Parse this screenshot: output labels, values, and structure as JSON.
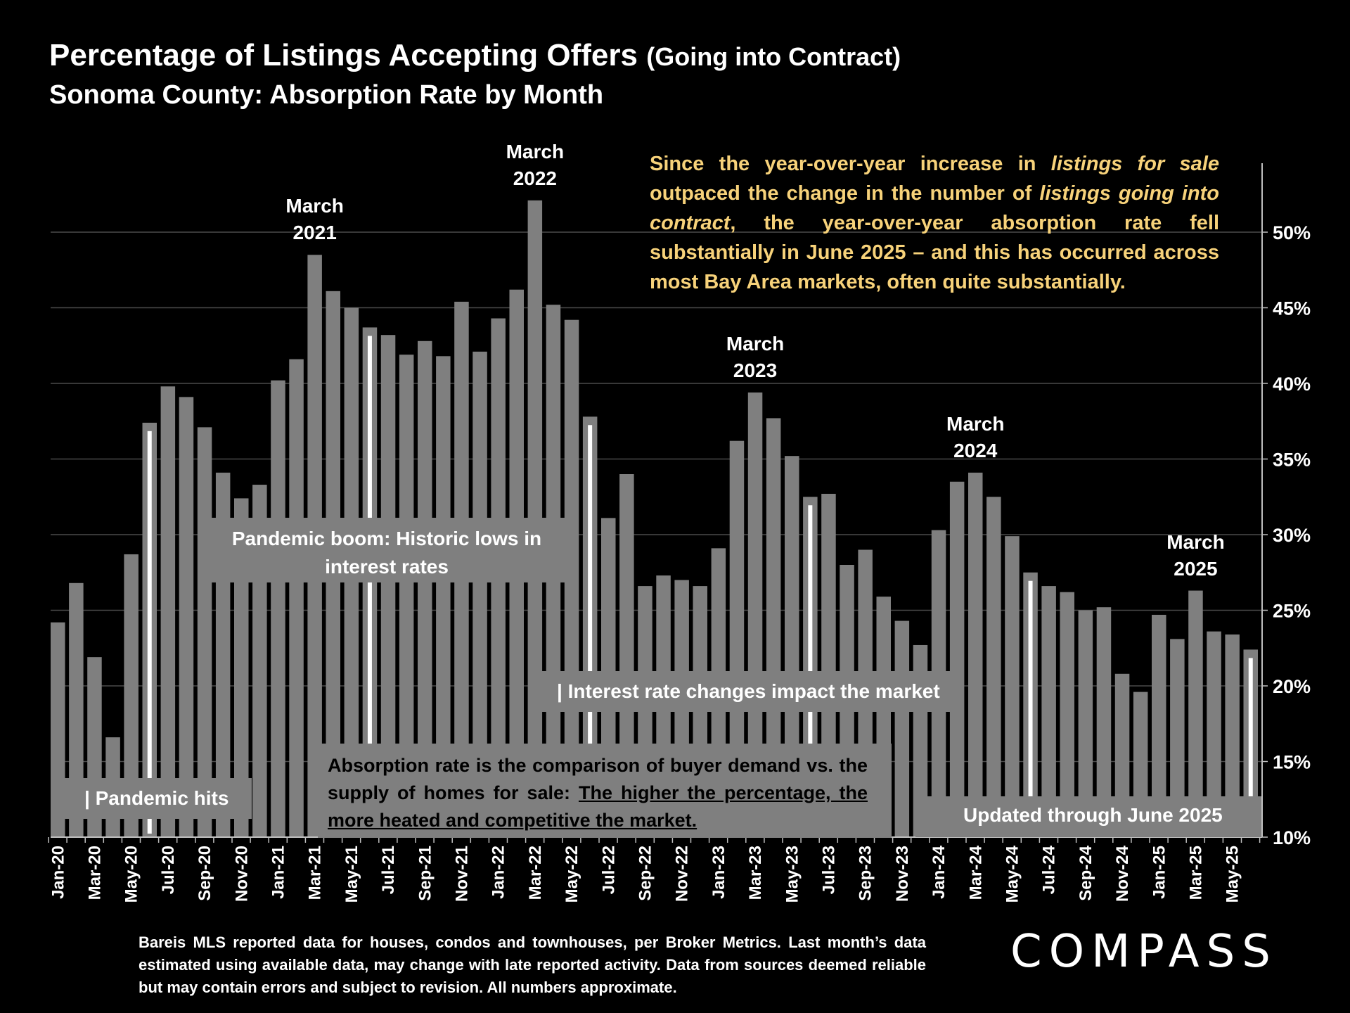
{
  "header": {
    "title_main": "Percentage of Listings Accepting Offers",
    "title_suffix": "(Going into Contract)",
    "subtitle": "Sonoma County:  Absorption Rate by Month"
  },
  "insight": {
    "p1": "Since the year-over-year increase in ",
    "p2": "listings for sale",
    "p3": " outpaced the change in the number of ",
    "p4": "listings going into contract",
    "p5": ", the year-over-year absorption rate fell substantially in June 2025 – and this has occurred across most Bay Area markets, often quite substantially."
  },
  "annotations": {
    "pandemic_boom": "Pandemic boom: Historic lows in interest rates",
    "pandemic_hits": "| Pandemic hits",
    "interest_rate": "| Interest rate changes impact the market",
    "definition_plain": "Absorption rate is the comparison of buyer demand vs. the supply of homes for sale: ",
    "definition_underlined": "The higher the percentage, the more heated and competitive the market.",
    "updated": "Updated through June 2025"
  },
  "peaks": [
    {
      "text": "March 2021",
      "index": 14
    },
    {
      "text": "March 2022",
      "index": 26
    },
    {
      "text": "March 2023",
      "index": 38
    },
    {
      "text": "March 2024",
      "index": 50
    },
    {
      "text": "March 2025",
      "index": 62
    }
  ],
  "footnote": "Bareis MLS reported data for houses, condos and townhouses, per Broker Metrics. Last month’s data estimated using available data, may change with late reported activity. Data from sources deemed reliable but may contain errors and subject to revision. All numbers approximate.",
  "logo": "COMPASS",
  "chart_data": {
    "type": "bar",
    "title": "Percentage of Listings Accepting Offers (Going into Contract)",
    "subtitle": "Sonoma County:  Absorption Rate by Month",
    "x": [
      "Jan-20",
      "Feb-20",
      "Mar-20",
      "Apr-20",
      "May-20",
      "Jun-20",
      "Jul-20",
      "Aug-20",
      "Sep-20",
      "Oct-20",
      "Nov-20",
      "Dec-20",
      "Jan-21",
      "Feb-21",
      "Mar-21",
      "Apr-21",
      "May-21",
      "Jun-21",
      "Jul-21",
      "Aug-21",
      "Sep-21",
      "Oct-21",
      "Nov-21",
      "Dec-21",
      "Jan-22",
      "Feb-22",
      "Mar-22",
      "Apr-22",
      "May-22",
      "Jun-22",
      "Jul-22",
      "Aug-22",
      "Sep-22",
      "Oct-22",
      "Nov-22",
      "Dec-22",
      "Jan-23",
      "Feb-23",
      "Mar-23",
      "Apr-23",
      "May-23",
      "Jun-23",
      "Jul-23",
      "Aug-23",
      "Sep-23",
      "Oct-23",
      "Nov-23",
      "Dec-23",
      "Jan-24",
      "Feb-24",
      "Mar-24",
      "Apr-24",
      "May-24",
      "Jun-24",
      "Jul-24",
      "Aug-24",
      "Sep-24",
      "Oct-24",
      "Nov-24",
      "Dec-24",
      "Jan-25",
      "Feb-25",
      "Mar-25",
      "Apr-25",
      "May-25",
      "Jun-25"
    ],
    "tick_labels": [
      "Jan-20",
      "Mar-20",
      "May-20",
      "Jul-20",
      "Sep-20",
      "Nov-20",
      "Jan-21",
      "Mar-21",
      "May-21",
      "Jul-21",
      "Sep-21",
      "Nov-21",
      "Jan-22",
      "Mar-22",
      "May-22",
      "Jul-22",
      "Sep-22",
      "Nov-22",
      "Jan-23",
      "Mar-23",
      "May-23",
      "Jul-23",
      "Sep-23",
      "Nov-23",
      "Jan-24",
      "Mar-24",
      "May-24",
      "Jul-24",
      "Sep-24",
      "Nov-24",
      "Jan-25",
      "Mar-25",
      "May-25"
    ],
    "values": [
      24.2,
      26.8,
      21.9,
      16.6,
      28.7,
      37.4,
      39.8,
      39.1,
      37.1,
      34.1,
      32.4,
      33.3,
      40.2,
      41.6,
      48.5,
      46.1,
      45.0,
      43.7,
      43.2,
      41.9,
      42.8,
      41.8,
      45.4,
      42.1,
      44.3,
      46.2,
      52.1,
      45.2,
      44.2,
      37.8,
      31.1,
      34.0,
      26.6,
      27.3,
      27.0,
      26.6,
      29.1,
      36.2,
      39.4,
      37.7,
      35.2,
      32.5,
      32.7,
      28.0,
      29.0,
      25.9,
      24.3,
      22.7,
      30.3,
      33.5,
      34.1,
      32.5,
      29.9,
      27.5,
      26.6,
      26.2,
      25.0,
      25.2,
      20.8,
      19.6,
      24.7,
      23.1,
      26.3,
      23.6,
      23.4,
      22.4
    ],
    "y_ticks": [
      "10%",
      "15%",
      "20%",
      "25%",
      "30%",
      "35%",
      "40%",
      "45%",
      "50%"
    ],
    "ylim": [
      10,
      54
    ],
    "y_axis_side": "right",
    "grid": true,
    "bar_color": "#7f7f7f",
    "marker_color": "#ffffff",
    "white_marker_indices": [
      5,
      17,
      29,
      41,
      53,
      65
    ]
  }
}
